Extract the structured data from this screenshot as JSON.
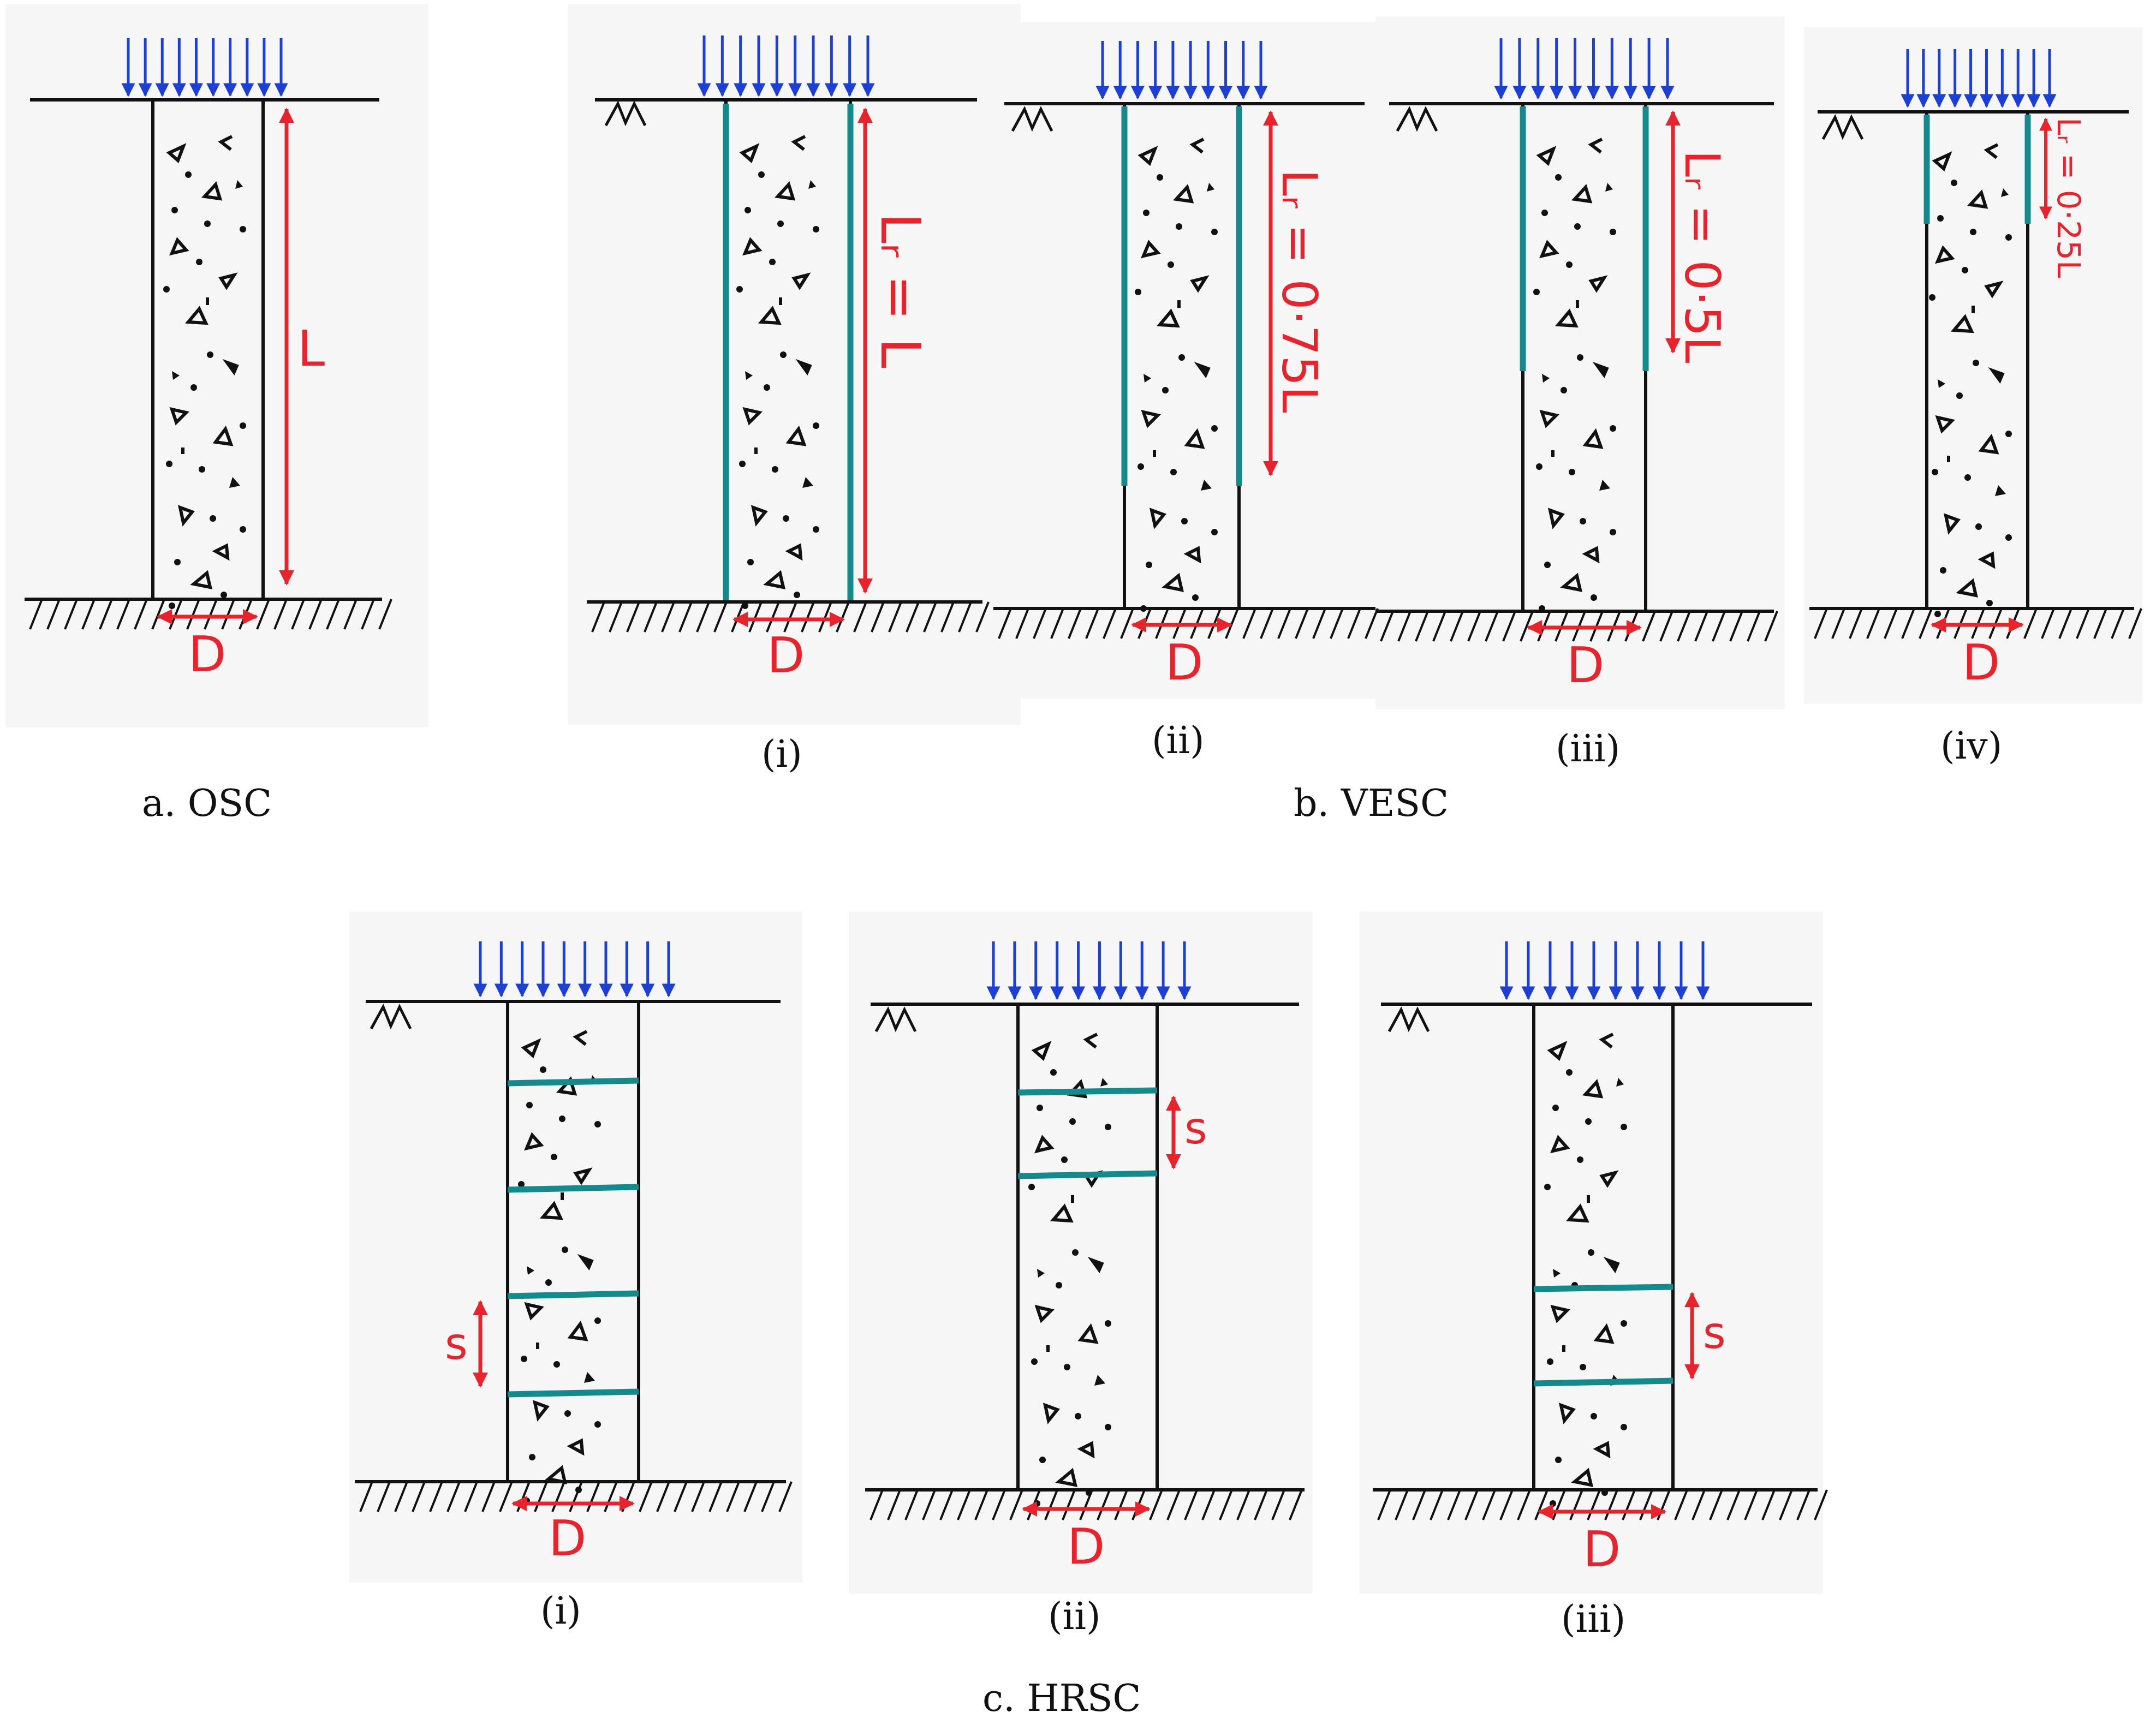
{
  "colors": {
    "load_arrow": "#1c3fd6",
    "encasement": "#138a8c",
    "dimension": "#e8232b",
    "line": "#111111",
    "panel_bg": "#f6f6f6"
  },
  "panels": {
    "osc": {
      "length_label": "L",
      "diameter_label": "D",
      "caption": "a. OSC"
    },
    "vesc": {
      "caption": "b. VESC",
      "diameter_label": "D",
      "items": [
        {
          "numeral": "(i)",
          "encasement_label": "Lᵣ = L",
          "encased_fraction": 1.0
        },
        {
          "numeral": "(ii)",
          "encasement_label": "Lᵣ = 0·75L",
          "encased_fraction": 0.75
        },
        {
          "numeral": "(iii)",
          "encasement_label": "Lᵣ = 0·5L",
          "encased_fraction": 0.5
        },
        {
          "numeral": "(iv)",
          "encasement_label": "Lᵣ = 0·25L",
          "encased_fraction": 0.25
        }
      ]
    },
    "hrsc": {
      "caption": "c. HRSC",
      "diameter_label": "D",
      "spacing_label": "s",
      "items": [
        {
          "numeral": "(i)",
          "disc_count": 4
        },
        {
          "numeral": "(ii)",
          "disc_count": 2
        },
        {
          "numeral": "(iii)",
          "disc_count": 2
        }
      ]
    }
  }
}
